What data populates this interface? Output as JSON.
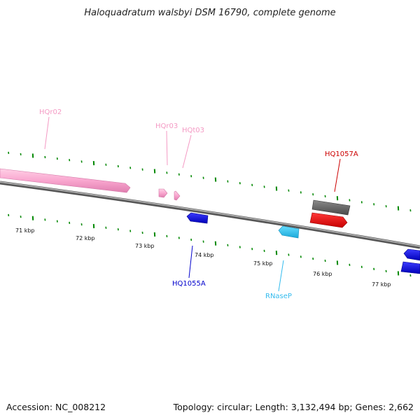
{
  "title": "Haloquadratum walsbyi DSM 16790, complete genome",
  "footer": {
    "accession": "Accession: NC_008212",
    "info": "Topology: circular; Length: 3,132,494 bp; Genes: 2,662"
  },
  "kbp_labels": [
    "71 kbp",
    "72 kbp",
    "73 kbp",
    "74 kbp",
    "75 kbp",
    "76 kbp",
    "77 kbp"
  ],
  "feature_labels": {
    "hqr02": "HQr02",
    "hqr03": "HQr03",
    "hqt03": "HQt03",
    "hq1057a": "HQ1057A",
    "hq1055a": "HQ1055A",
    "rnasep": "RNaseP"
  },
  "colors": {
    "rRNA": "#f9a6cf",
    "tRNA": "#f9a6cf",
    "gene_blue": "#0000ee",
    "gene_red": "#ff0000",
    "gene_gray": "#666666",
    "rnasep": "#33ccff",
    "ticks": "#008800",
    "backbone": "#888888"
  }
}
